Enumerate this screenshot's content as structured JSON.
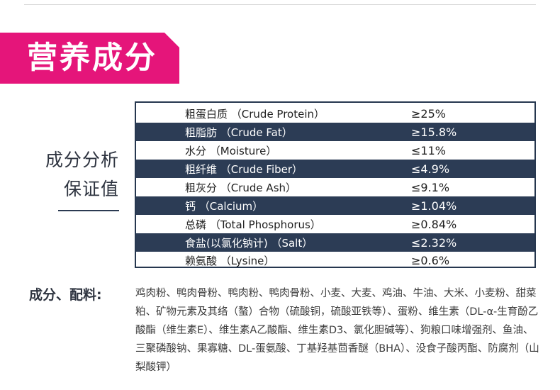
{
  "banner": {
    "title": "营养成分"
  },
  "side": {
    "line1": "成分分析",
    "line2": "保证值"
  },
  "table": {
    "rows": [
      {
        "name": "粗蛋白质  （Crude Protein）",
        "value": "≥25%"
      },
      {
        "name": "粗脂肪  （Crude Fat）",
        "value": "≥15.8%"
      },
      {
        "name": "水分  （Moisture）",
        "value": "≤11%"
      },
      {
        "name": "粗纤维  （Crude Fiber）",
        "value": "≤4.9%"
      },
      {
        "name": "粗灰分  （Crude Ash）",
        "value": "≤9.1%"
      },
      {
        "name": "钙  （Calcium）",
        "value": "≥1.04%"
      },
      {
        "name": "总磷  （Total Phosphorus）",
        "value": "≥0.84%"
      },
      {
        "name": "食盐(以氯化钠计)    （Salt）",
        "value": "≤2.32%"
      },
      {
        "name": "赖氨酸  （Lysine）",
        "value": "≥0.6%"
      }
    ]
  },
  "ingredients": {
    "label": "成分、配料:",
    "text": "鸡肉粉、鸭肉骨粉、鸭肉粉、鸭肉骨粉、小麦、大麦、鸡油、牛油、大米、小麦粉、甜菜粕、矿物元素及其络（螯）合物（硫酸铜，硫酸亚铁等）、蛋粉、维生素（DL-α-生育酚乙酸酯（维生素E）、维生素A乙酸酯、维生素D3、氯化胆碱等）、狗粮口味增强剂、鱼油、三聚磷酸钠、果寡糖、DL-蛋氨酸、丁基羟基茴香醚（BHA）、没食子酸丙酯、防腐剂（山梨酸钾）"
  }
}
